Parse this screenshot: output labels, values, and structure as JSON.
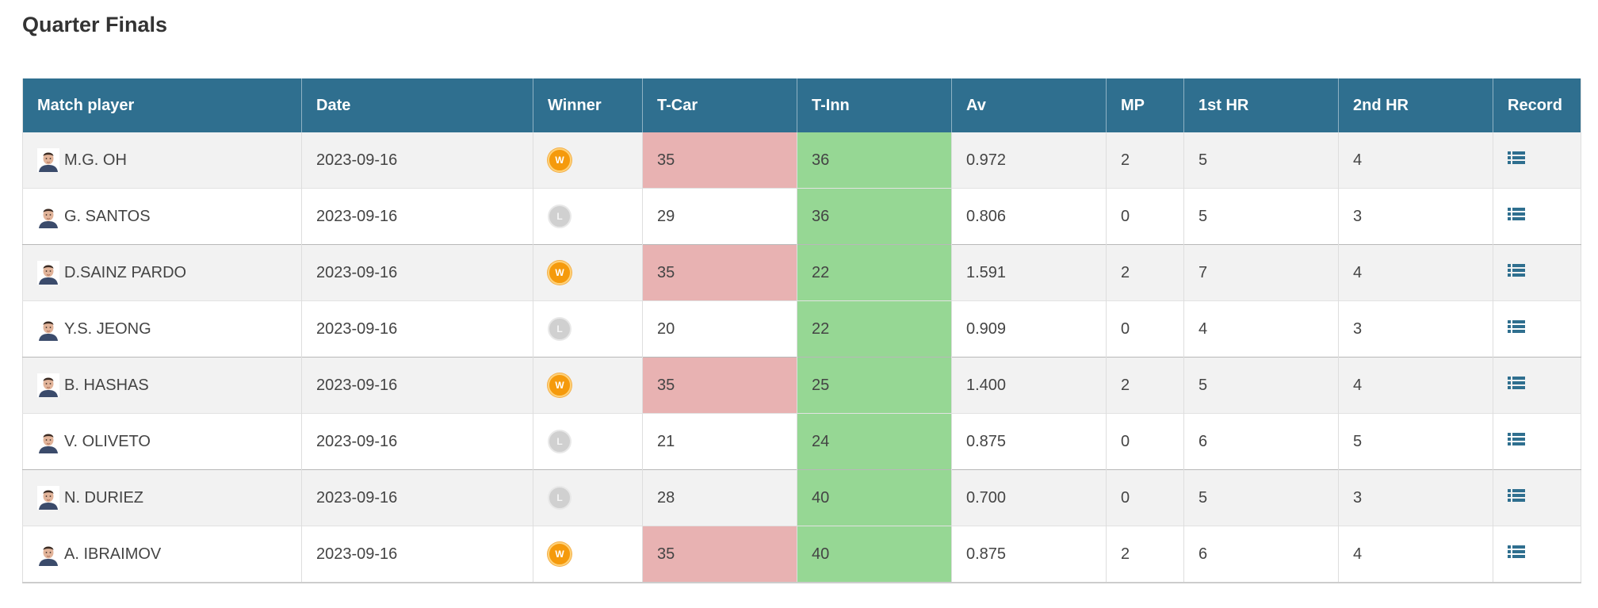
{
  "page": {
    "section_title": "Quarter Finals"
  },
  "table": {
    "headers": {
      "player": "Match player",
      "date": "Date",
      "winner": "Winner",
      "tcar": "T-Car",
      "tinn": "T-Inn",
      "av": "Av",
      "mp": "MP",
      "hr1": "1st HR",
      "hr2": "2nd HR",
      "record": "Record"
    },
    "rows": [
      {
        "player": "M.G. OH",
        "date": "2023-09-16",
        "result": "W",
        "tcar": "35",
        "tinn": "36",
        "av": "0.972",
        "mp": "2",
        "hr1": "5",
        "hr2": "4"
      },
      {
        "player": "G. SANTOS",
        "date": "2023-09-16",
        "result": "L",
        "tcar": "29",
        "tinn": "36",
        "av": "0.806",
        "mp": "0",
        "hr1": "5",
        "hr2": "3"
      },
      {
        "player": "D.SAINZ PARDO",
        "date": "2023-09-16",
        "result": "W",
        "tcar": "35",
        "tinn": "22",
        "av": "1.591",
        "mp": "2",
        "hr1": "7",
        "hr2": "4"
      },
      {
        "player": "Y.S. JEONG",
        "date": "2023-09-16",
        "result": "L",
        "tcar": "20",
        "tinn": "22",
        "av": "0.909",
        "mp": "0",
        "hr1": "4",
        "hr2": "3"
      },
      {
        "player": "B. HASHAS",
        "date": "2023-09-16",
        "result": "W",
        "tcar": "35",
        "tinn": "25",
        "av": "1.400",
        "mp": "2",
        "hr1": "5",
        "hr2": "4"
      },
      {
        "player": "V. OLIVETO",
        "date": "2023-09-16",
        "result": "L",
        "tcar": "21",
        "tinn": "24",
        "av": "0.875",
        "mp": "0",
        "hr1": "6",
        "hr2": "5"
      },
      {
        "player": "N. DURIEZ",
        "date": "2023-09-16",
        "result": "L",
        "tcar": "28",
        "tinn": "40",
        "av": "0.700",
        "mp": "0",
        "hr1": "5",
        "hr2": "3"
      },
      {
        "player": "A. IBRAIMOV",
        "date": "2023-09-16",
        "result": "W",
        "tcar": "35",
        "tinn": "40",
        "av": "0.875",
        "mp": "2",
        "hr1": "6",
        "hr2": "4"
      }
    ],
    "icons": {
      "avatar": "player-avatar-icon",
      "record": "list-icon",
      "win_badge": "win-badge-icon",
      "loss_badge": "loss-badge-icon"
    }
  },
  "colors": {
    "header_bg": "#2f6f8f",
    "header_text": "#ffffff",
    "row_alt_bg": "#f2f2f2",
    "tcar_win_bg": "#e8b2b2",
    "tinn_bg": "#96d794",
    "win_badge": "#f59a0c",
    "loss_badge": "#d0d0d0",
    "record_icon": "#2f6f8f"
  }
}
